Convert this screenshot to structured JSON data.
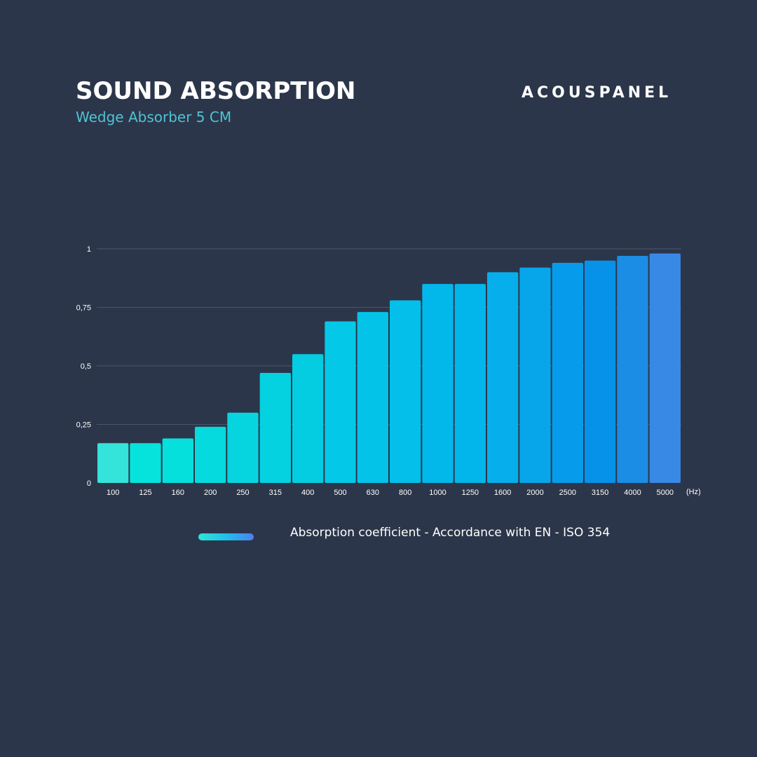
{
  "header": {
    "title": "SOUND ABSORPTION",
    "subtitle": "Wedge Absorber 5 CM",
    "brand": "ACOUSPANEL"
  },
  "legend": {
    "label": "Absorption coefficient - Accordance with EN - ISO 354"
  },
  "chart_data": {
    "type": "bar",
    "categories": [
      "100",
      "125",
      "160",
      "200",
      "250",
      "315",
      "400",
      "500",
      "630",
      "800",
      "1000",
      "1250",
      "1600",
      "2000",
      "2500",
      "3150",
      "4000",
      "5000"
    ],
    "values": [
      0.17,
      0.17,
      0.19,
      0.24,
      0.3,
      0.47,
      0.55,
      0.69,
      0.73,
      0.78,
      0.85,
      0.85,
      0.9,
      0.92,
      0.94,
      0.95,
      0.97,
      0.98
    ],
    "x_unit_label": "(Hz)",
    "ylim": [
      0,
      1
    ],
    "yticks": [
      {
        "value": 0,
        "label": "0"
      },
      {
        "value": 0.25,
        "label": "0,25"
      },
      {
        "value": 0.5,
        "label": "0,5"
      },
      {
        "value": 0.75,
        "label": "0,75"
      },
      {
        "value": 1,
        "label": "1"
      }
    ],
    "grid": true,
    "legend_position": "bottom",
    "colors": [
      "#34e3d9",
      "#06e3dc",
      "#05e0dd",
      "#05dadf",
      "#06d5e0",
      "#04d2e1",
      "#04cde2",
      "#03c8e7",
      "#03c3e9",
      "#03bfea",
      "#02b8eb",
      "#02b6eb",
      "#06aeeb",
      "#07a6eb",
      "#079ceb",
      "#0692e9",
      "#1b8de5",
      "#3888e6"
    ]
  }
}
